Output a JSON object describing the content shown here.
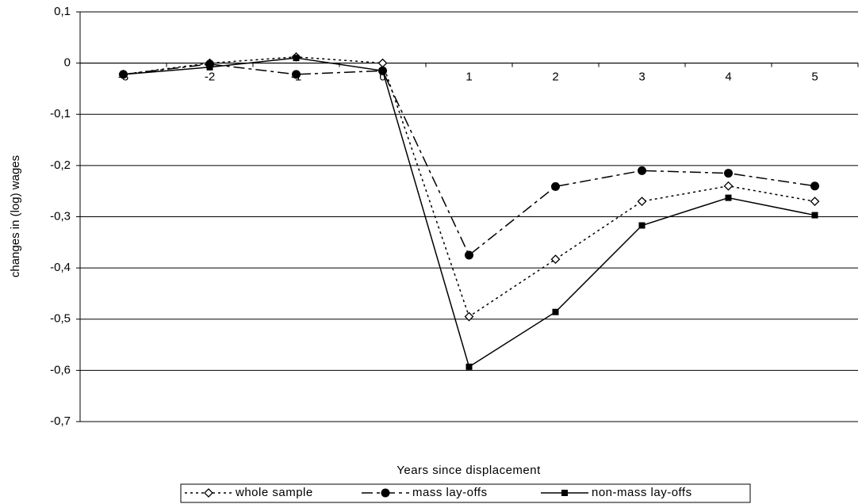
{
  "chart_data": {
    "type": "line",
    "x_label": "Years since displacement",
    "y_label": "changes in (log) wages",
    "categories": [
      "-3",
      "-2",
      "-1",
      "0",
      "1",
      "2",
      "3",
      "4",
      "5"
    ],
    "series": [
      {
        "name": "whole sample",
        "color": "#000000",
        "marker": "diamond",
        "dash": "3,4",
        "values": [
          -0.022,
          0.0,
          0.012,
          0.0,
          -0.495,
          -0.383,
          -0.27,
          -0.24,
          -0.27
        ]
      },
      {
        "name": "mass lay-offs",
        "color": "#000000",
        "marker": "circle",
        "dash": "14,5,4,5",
        "values": [
          -0.022,
          -0.002,
          -0.022,
          -0.015,
          -0.375,
          -0.241,
          -0.21,
          -0.215,
          -0.24
        ]
      },
      {
        "name": "non-mass lay-offs",
        "color": "#000000",
        "marker": "square",
        "dash": "none",
        "values": [
          -0.022,
          -0.008,
          0.01,
          -0.015,
          -0.593,
          -0.486,
          -0.317,
          -0.263,
          -0.297
        ]
      }
    ],
    "ylim": [
      -0.7,
      0.1
    ],
    "yticks": [
      {
        "value": 0.1,
        "label": "0,1"
      },
      0,
      {
        "value": -0.1,
        "label": "-0,1"
      },
      {
        "value": -0.2,
        "label": "-0,2"
      },
      {
        "value": -0.3,
        "label": "-0,3"
      },
      {
        "value": -0.4,
        "label": "-0,4"
      },
      {
        "value": -0.5,
        "label": "-0,5"
      },
      {
        "value": -0.6,
        "label": "-0,6"
      },
      {
        "value": -0.7,
        "label": "-0,7"
      }
    ],
    "grid": true,
    "legend": "bottom"
  }
}
